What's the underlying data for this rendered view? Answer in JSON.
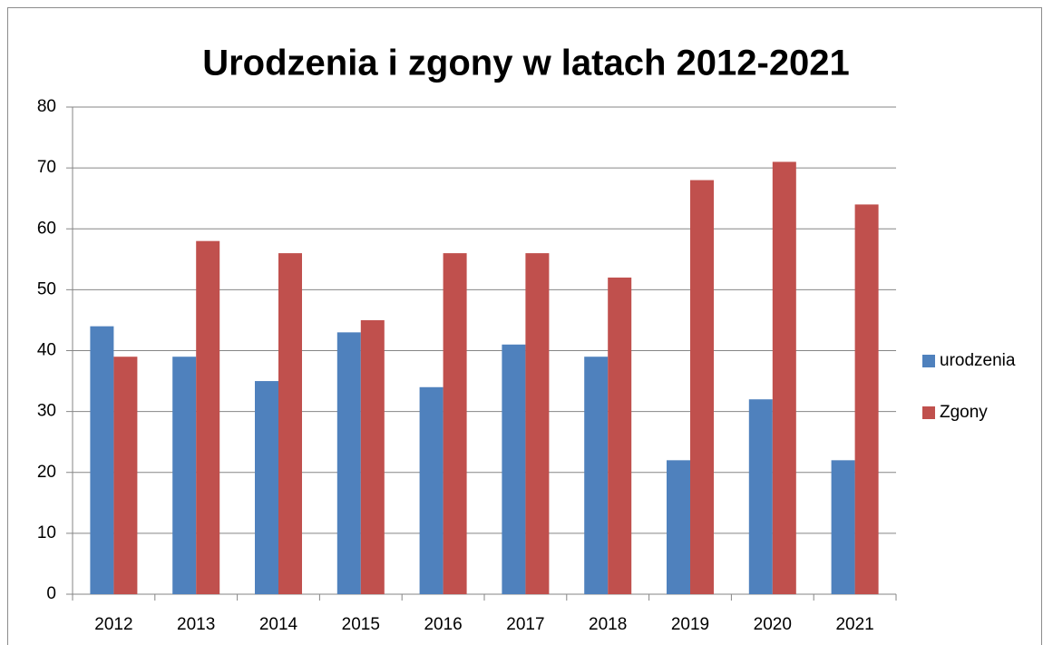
{
  "chart_data": {
    "type": "bar",
    "title": "Urodzenia i zgony w latach 2012-2021",
    "categories": [
      "2012",
      "2013",
      "2014",
      "2015",
      "2016",
      "2017",
      "2018",
      "2019",
      "2020",
      "2021"
    ],
    "series": [
      {
        "name": "urodzenia",
        "color": "#4f81bd",
        "values": [
          44,
          39,
          35,
          43,
          34,
          41,
          39,
          22,
          32,
          22
        ]
      },
      {
        "name": "Zgony",
        "color": "#c0504d",
        "values": [
          39,
          58,
          56,
          45,
          56,
          56,
          52,
          68,
          71,
          64
        ]
      }
    ],
    "ylim": [
      0,
      80
    ],
    "yticks": [
      0,
      10,
      20,
      30,
      40,
      50,
      60,
      70,
      80
    ],
    "grid": true,
    "legend": "right"
  }
}
